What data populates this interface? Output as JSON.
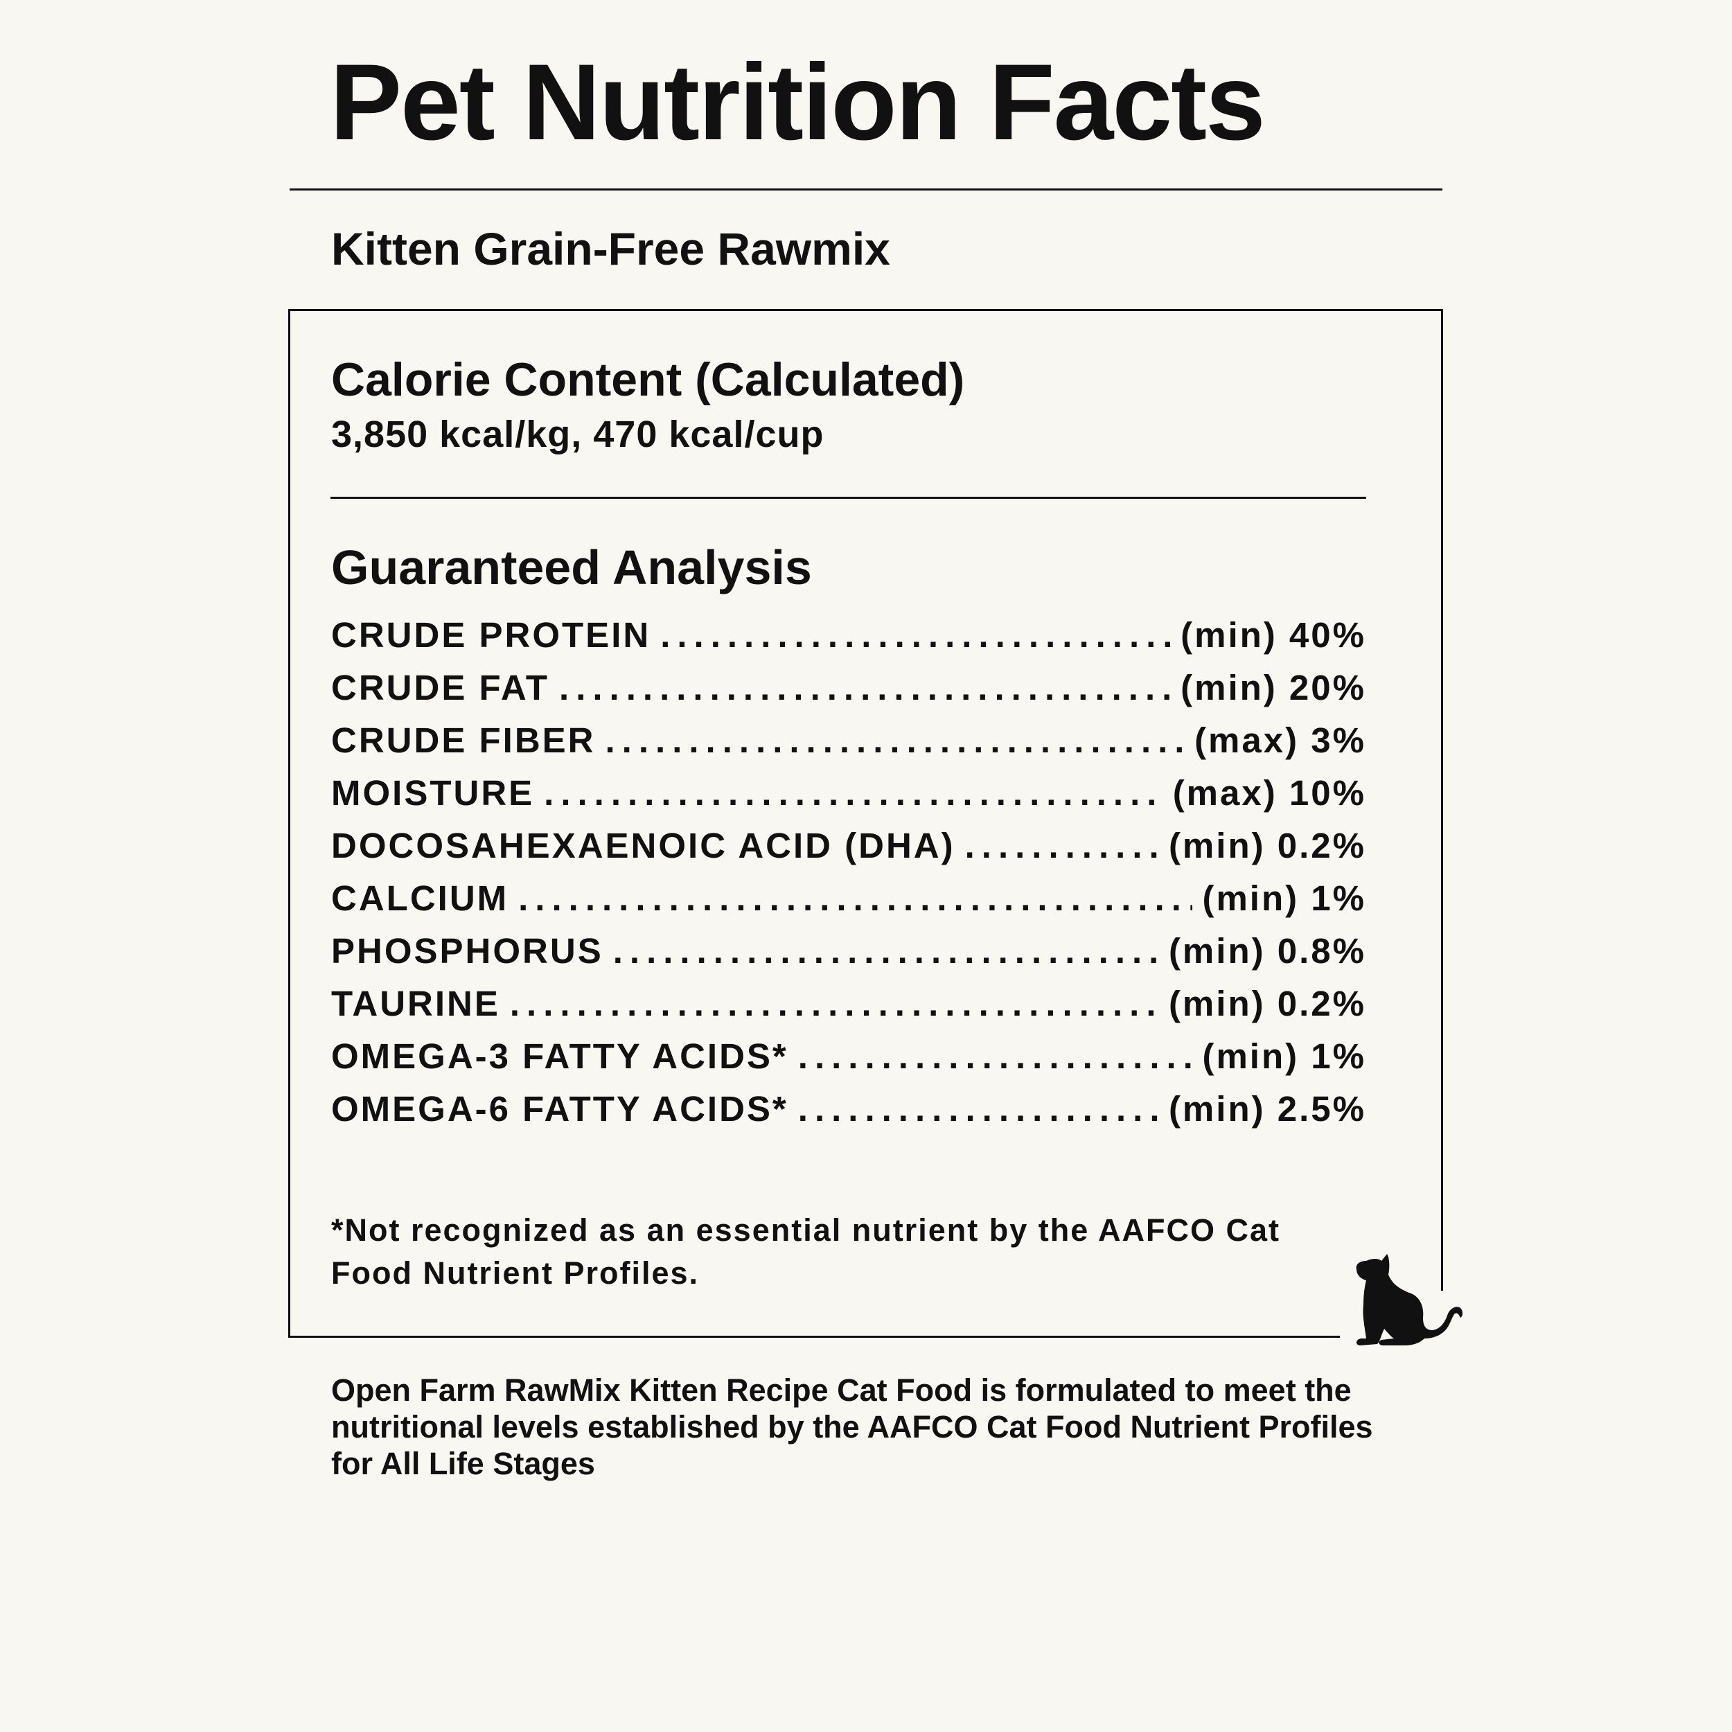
{
  "title": "Pet Nutrition Facts",
  "product_name": "Kitten Grain-Free Rawmix",
  "calorie": {
    "heading": "Calorie Content (Calculated)",
    "value": "3,850 kcal/kg, 470 kcal/cup"
  },
  "analysis": {
    "heading": "Guaranteed Analysis",
    "rows": [
      {
        "name": "CRUDE PROTEIN",
        "value": "(min) 40%"
      },
      {
        "name": "CRUDE FAT",
        "value": "(min) 20%"
      },
      {
        "name": "CRUDE FIBER",
        "value": "(max) 3%"
      },
      {
        "name": "MOISTURE",
        "value": "(max) 10%"
      },
      {
        "name": "DOCOSAHEXAENOIC ACID (DHA)",
        "value": "(min) 0.2%"
      },
      {
        "name": "CALCIUM",
        "value": "(min) 1%"
      },
      {
        "name": "PHOSPHORUS",
        "value": "(min) 0.8%"
      },
      {
        "name": "TAURINE",
        "value": "(min) 0.2%"
      },
      {
        "name": "OMEGA-3 FATTY ACIDS*",
        "value": "(min) 1%"
      },
      {
        "name": "OMEGA-6 FATTY ACIDS*",
        "value": "(min) 2.5%"
      }
    ]
  },
  "footnote": "*Not recognized as an essential nutrient by the AAFCO Cat Food Nutrient Profiles.",
  "statement": "Open Farm RawMix Kitten Recipe Cat Food is formulated to meet the nutritional levels established by the AAFCO Cat Food Nutrient Profiles for All Life Stages",
  "icons": {
    "decoration": "cat-silhouette-icon"
  },
  "colors": {
    "background": "#f9f7f1",
    "text": "#111111"
  }
}
